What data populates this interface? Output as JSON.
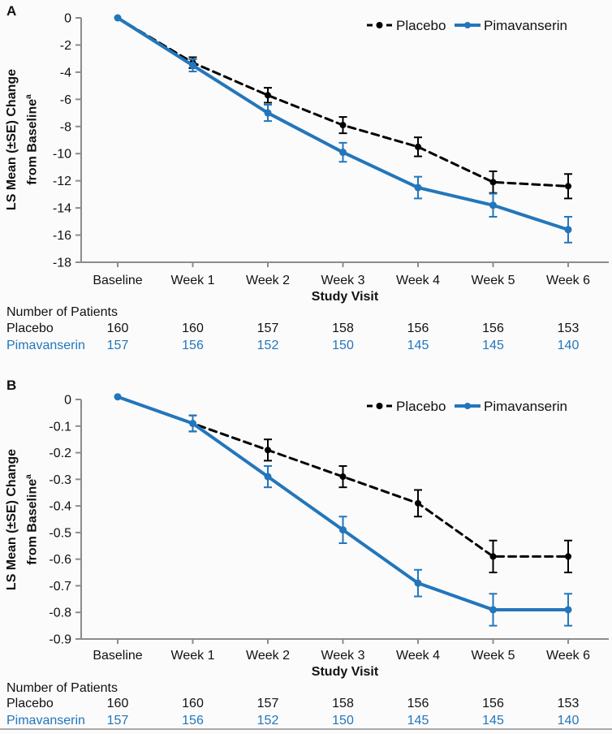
{
  "figure": {
    "background": "#fbfbfb",
    "axis_color": "#8c8c8c",
    "text_color": "#111111",
    "accent_blue": "#2376bb",
    "black": "#000000"
  },
  "legend": {
    "position": "top-right",
    "items": [
      {
        "label": "Placebo",
        "marker": "black-dashed-line-with-dot"
      },
      {
        "label": "Pimavanserin",
        "marker": "blue-solid-line-with-dot"
      }
    ]
  },
  "panels": [
    {
      "label": "A",
      "ylabel_line1": "LS Mean (±SE) Change",
      "ylabel_line2": "from Baseline",
      "ylabel_sup": "a",
      "xlabel": "Study Visit"
    },
    {
      "label": "B",
      "ylabel_line1": "LS Mean (±SE) Change",
      "ylabel_line2": "from Baseline",
      "ylabel_sup": "a",
      "xlabel": "Study Visit"
    }
  ],
  "chart_data": [
    {
      "type": "line",
      "panel": "A",
      "title": "",
      "xlabel": "Study Visit",
      "ylabel": "LS Mean (±SE) Change from Baseline(a)",
      "categories": [
        "Baseline",
        "Week 1",
        "Week 2",
        "Week 3",
        "Week 4",
        "Week 5",
        "Week 6"
      ],
      "ylim": [
        -18,
        0
      ],
      "ytick_labels": [
        "0",
        "-2",
        "-4",
        "-6",
        "-8",
        "-10",
        "-12",
        "-14",
        "-16",
        "-18"
      ],
      "grid": false,
      "legend_position": "top-right",
      "error_bars": "±SE",
      "series": [
        {
          "name": "Placebo",
          "line": "dashed",
          "color": "#000000",
          "values": [
            0,
            -3.3,
            -5.7,
            -7.9,
            -9.5,
            -12.1,
            -12.4
          ],
          "se": [
            0,
            0.4,
            0.55,
            0.6,
            0.7,
            0.8,
            0.9
          ]
        },
        {
          "name": "Pimavanserin",
          "line": "solid",
          "color": "#2376bb",
          "values": [
            0,
            -3.5,
            -7.0,
            -9.9,
            -12.5,
            -13.8,
            -15.6
          ],
          "se": [
            0,
            0.45,
            0.6,
            0.7,
            0.8,
            0.85,
            0.95
          ]
        }
      ]
    },
    {
      "type": "line",
      "panel": "B",
      "title": "",
      "xlabel": "Study Visit",
      "ylabel": "LS Mean (±SE) Change from Baseline(a)",
      "categories": [
        "Baseline",
        "Week 1",
        "Week 2",
        "Week 3",
        "Week 4",
        "Week 5",
        "Week 6"
      ],
      "ylim": [
        -0.9,
        0
      ],
      "ytick_labels": [
        "0",
        "-0.1",
        "-0.2",
        "-0.3",
        "-0.4",
        "-0.5",
        "-0.6",
        "-0.7",
        "-0.8",
        "-0.9"
      ],
      "grid": false,
      "legend_position": "top-right",
      "error_bars": "±SE",
      "series": [
        {
          "name": "Placebo",
          "line": "dashed",
          "color": "#000000",
          "values": [
            0.01,
            -0.09,
            -0.19,
            -0.29,
            -0.39,
            -0.59,
            -0.59
          ],
          "se": [
            0,
            0.03,
            0.04,
            0.04,
            0.05,
            0.06,
            0.06
          ]
        },
        {
          "name": "Pimavanserin",
          "line": "solid",
          "color": "#2376bb",
          "values": [
            0.01,
            -0.09,
            -0.29,
            -0.49,
            -0.69,
            -0.79,
            -0.79
          ],
          "se": [
            0,
            0.03,
            0.04,
            0.05,
            0.05,
            0.06,
            0.06
          ]
        }
      ]
    }
  ],
  "patients_table": {
    "title": "Number of Patients",
    "columns": [
      "Baseline",
      "Week 1",
      "Week 2",
      "Week 3",
      "Week 4",
      "Week 5",
      "Week 6"
    ],
    "rows": [
      {
        "label": "Placebo",
        "values": [
          "160",
          "160",
          "157",
          "158",
          "156",
          "156",
          "153"
        ]
      },
      {
        "label": "Pimavanserin",
        "values": [
          "157",
          "156",
          "152",
          "150",
          "145",
          "145",
          "140"
        ]
      }
    ]
  }
}
